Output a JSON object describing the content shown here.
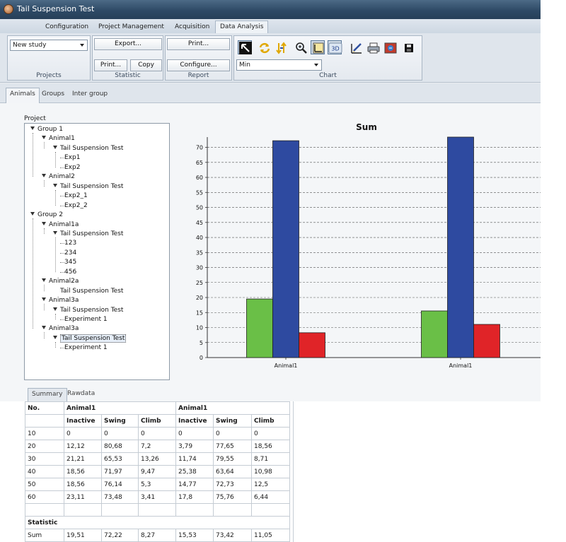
{
  "window": {
    "title": "Tail Suspension Test"
  },
  "menu_tabs": [
    {
      "label": "Configuration",
      "active": false
    },
    {
      "label": "Project Management",
      "active": false
    },
    {
      "label": "Acquisition",
      "active": false
    },
    {
      "label": "Data Analysis",
      "active": true
    }
  ],
  "ribbon": {
    "projects": {
      "title": "Projects",
      "study_select": "New study"
    },
    "statistic": {
      "title": "Statistic",
      "export_label": "Export...",
      "print_label": "Print...",
      "copy_label": "Copy"
    },
    "report": {
      "title": "Report",
      "print_label": "Print...",
      "configure_label": "Configure..."
    },
    "chart": {
      "title": "Chart",
      "mode_select": "Min",
      "tools": [
        "pointer-icon",
        "rotate-icon",
        "swap-axes-icon",
        "zoom-icon",
        "frame-icon",
        "3d-icon",
        "edit-chart-icon",
        "print-icon",
        "export-image-icon",
        "save-icon"
      ],
      "tool_3d_label": "3D"
    }
  },
  "sub_tabs": [
    {
      "label": "Animals",
      "active": true
    },
    {
      "label": "Groups",
      "active": false
    },
    {
      "label": "Inter group",
      "active": false
    }
  ],
  "project": {
    "label": "Project",
    "tree": [
      {
        "label": "Group 1",
        "level": 0,
        "expanded": true
      },
      {
        "label": "Animal1",
        "level": 1,
        "expanded": true
      },
      {
        "label": "Tail Suspension Test",
        "level": 2,
        "expanded": true
      },
      {
        "label": "Exp1",
        "level": 3
      },
      {
        "label": "Exp2",
        "level": 3
      },
      {
        "label": "Animal2",
        "level": 1,
        "expanded": true
      },
      {
        "label": "Tail Suspension Test",
        "level": 2,
        "expanded": true
      },
      {
        "label": "Exp2_1",
        "level": 3
      },
      {
        "label": "Exp2_2",
        "level": 3
      },
      {
        "label": "Group 2",
        "level": 0,
        "expanded": true
      },
      {
        "label": "Animal1a",
        "level": 1,
        "expanded": true
      },
      {
        "label": "Tail Suspension Test",
        "level": 2,
        "expanded": true
      },
      {
        "label": "123",
        "level": 3
      },
      {
        "label": "234",
        "level": 3
      },
      {
        "label": "345",
        "level": 3
      },
      {
        "label": "456",
        "level": 3
      },
      {
        "label": "Animal2a",
        "level": 1,
        "expanded": true
      },
      {
        "label": "Tail Suspension Test",
        "level": 2
      },
      {
        "label": "Animal3a",
        "level": 1,
        "expanded": true
      },
      {
        "label": "Tail Suspension Test",
        "level": 2,
        "expanded": true
      },
      {
        "label": "Experiment 1",
        "level": 3
      },
      {
        "label": "Animal3a",
        "level": 1,
        "expanded": true
      },
      {
        "label": "Tail Suspension Test",
        "level": 2,
        "expanded": true,
        "selected": true
      },
      {
        "label": "Experiment 1",
        "level": 3
      }
    ]
  },
  "chart_data": {
    "type": "bar",
    "title": "Sum",
    "categories": [
      "Animal1",
      "Animal1"
    ],
    "series": [
      {
        "values": [
          19.51,
          15.53
        ],
        "color": "#6abf47"
      },
      {
        "values": [
          72.22,
          73.42
        ],
        "color": "#2e4aa0"
      },
      {
        "values": [
          8.27,
          11.05
        ],
        "color": "#e02428"
      }
    ],
    "ylim": [
      0,
      73.42
    ],
    "yticks": [
      0,
      5,
      10,
      15,
      20,
      25,
      30,
      35,
      40,
      45,
      50,
      55,
      60,
      65,
      70
    ],
    "grid": "dashed-horizontal",
    "legend": "none"
  },
  "lower_tabs": [
    {
      "label": "Summary",
      "active": true
    },
    {
      "label": "Rawdata",
      "active": false
    }
  ],
  "summary_table": {
    "no_header": "No.",
    "groups": [
      "Animal1",
      "Animal1"
    ],
    "columns": [
      "Inactive",
      "Swing",
      "Climb",
      "Inactive",
      "Swing",
      "Climb"
    ],
    "rows": [
      [
        "10",
        "0",
        "0",
        "0",
        "0",
        "0",
        "0"
      ],
      [
        "20",
        "12,12",
        "80,68",
        "7,2",
        "3,79",
        "77,65",
        "18,56"
      ],
      [
        "30",
        "21,21",
        "65,53",
        "13,26",
        "11,74",
        "79,55",
        "8,71"
      ],
      [
        "40",
        "18,56",
        "71,97",
        "9,47",
        "25,38",
        "63,64",
        "10,98"
      ],
      [
        "50",
        "18,56",
        "76,14",
        "5,3",
        "14,77",
        "72,73",
        "12,5"
      ],
      [
        "60",
        "23,11",
        "73,48",
        "3,41",
        "17,8",
        "75,76",
        "6,44"
      ]
    ],
    "statistic_label": "Statistic",
    "sum_row": [
      "Sum",
      "19,51",
      "72,22",
      "8,27",
      "15,53",
      "73,42",
      "11,05"
    ]
  }
}
